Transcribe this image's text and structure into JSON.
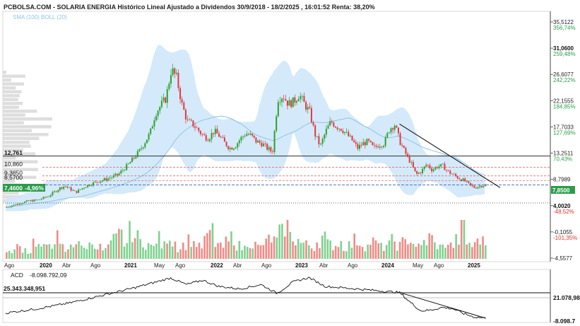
{
  "header": {
    "title": "PCBOLSA.COM - SOLARIA ENERGIA Histórico Lineal Ajustado a Dividendos 30/9/2018 - 18/2/2025 , 16:01:52 Renta: 38,20%",
    "indicators": "SMA (100) BOLL (20)"
  },
  "colors": {
    "up": "#2ca02c",
    "down": "#e0393e",
    "bollinger_fill": "#cfe8fa",
    "sma": "#8fc3e9",
    "up_pct": "#2a9d4a",
    "down_pct": "#d9342b",
    "current_box": "#2a9d4a"
  },
  "chart_data": {
    "type": "candlestick",
    "x_labels": [
      "Ago",
      "2020",
      "Abr",
      "Ago",
      "2021",
      "May",
      "Ago",
      "2022",
      "Abr",
      "Ago",
      "2023",
      "Abr",
      "Ago",
      "2024",
      "May",
      "Ago",
      "2025"
    ],
    "x_label_bold": [
      false,
      true,
      false,
      false,
      true,
      false,
      false,
      true,
      false,
      false,
      true,
      false,
      false,
      true,
      false,
      false,
      true
    ],
    "price_axis": [
      {
        "value": "35,5122",
        "pct": "356,74%",
        "pct_sign": "up"
      },
      {
        "value": "31,0600",
        "pct": "259,48%",
        "pct_sign": "up",
        "bold": true
      },
      {
        "value": "26,6077",
        "pct": "242,22%",
        "pct_sign": "up"
      },
      {
        "value": "22,1555",
        "pct": "184,85%",
        "pct_sign": "up"
      },
      {
        "value": "17,7033",
        "pct": "127,69%",
        "pct_sign": "up"
      },
      {
        "value": "13,2511",
        "pct": "70,43%",
        "pct_sign": "up"
      },
      {
        "value": "8,7989",
        "pct": "",
        "pct_sign": "up"
      },
      {
        "value": "4,0020",
        "pct": "-48,52%",
        "pct_sign": "down",
        "bold": true
      },
      {
        "value": "-0,1055",
        "pct": "-101,35%",
        "pct_sign": "down"
      },
      {
        "value": "-4,5577",
        "pct": "",
        "pct_sign": "down"
      }
    ],
    "current_price": "7,8500",
    "horizontal_levels": [
      {
        "label": "12,761",
        "value": 12.761
      },
      {
        "label": "10,860",
        "value": 10.86
      },
      {
        "label": "9,3850",
        "value": 9.385
      },
      {
        "label": "8,5700",
        "value": 8.57
      }
    ],
    "support_level": 4.8,
    "last_price_box": {
      "price": "7,4600",
      "change": "-4,96%"
    },
    "price_range": [
      -4.5577,
      37.0
    ],
    "price_path": [
      [
        0,
        4.1
      ],
      [
        2,
        4.6
      ],
      [
        4,
        5.1
      ],
      [
        6,
        5.3
      ],
      [
        8,
        6.0
      ],
      [
        10,
        7.3
      ],
      [
        11,
        7.7
      ],
      [
        13,
        6.6
      ],
      [
        15,
        7.7
      ],
      [
        17,
        8.4
      ],
      [
        19,
        8.9
      ],
      [
        21,
        9.6
      ],
      [
        23,
        11.4
      ],
      [
        25,
        13.6
      ],
      [
        27,
        16.6
      ],
      [
        28,
        20.0
      ],
      [
        30,
        22.6
      ],
      [
        31,
        27.5
      ],
      [
        32,
        26.0
      ],
      [
        33,
        21.5
      ],
      [
        34,
        18.6
      ],
      [
        35,
        18.2
      ],
      [
        36,
        17.2
      ],
      [
        37,
        16.2
      ],
      [
        38,
        15.8
      ],
      [
        39,
        17.0
      ],
      [
        40,
        16.2
      ],
      [
        41,
        15.0
      ],
      [
        42,
        14.1
      ],
      [
        43,
        14.5
      ],
      [
        44,
        15.7
      ],
      [
        45,
        16.6
      ],
      [
        46,
        16.2
      ],
      [
        47,
        15.2
      ],
      [
        48,
        14.9
      ],
      [
        49,
        14.1
      ],
      [
        50,
        13.4
      ],
      [
        51,
        22.5
      ],
      [
        52,
        23.0
      ],
      [
        53,
        21.6
      ],
      [
        54,
        22.0
      ],
      [
        55,
        23.2
      ],
      [
        56,
        21.6
      ],
      [
        57,
        20.2
      ],
      [
        58,
        16.4
      ],
      [
        59,
        14.4
      ],
      [
        60,
        16.9
      ],
      [
        61,
        18.6
      ],
      [
        62,
        17.8
      ],
      [
        63,
        17.4
      ],
      [
        64,
        16.4
      ],
      [
        65,
        15.4
      ],
      [
        66,
        14.1
      ],
      [
        67,
        14.9
      ],
      [
        68,
        15.2
      ],
      [
        69,
        14.1
      ],
      [
        70,
        14.7
      ],
      [
        71,
        14.9
      ],
      [
        72,
        17.4
      ],
      [
        73,
        18.1
      ],
      [
        74,
        15.1
      ],
      [
        75,
        13.2
      ],
      [
        76,
        11.6
      ],
      [
        77,
        9.6
      ],
      [
        78,
        10.2
      ],
      [
        79,
        11.4
      ],
      [
        80,
        10.4
      ],
      [
        81,
        11.0
      ],
      [
        82,
        11.1
      ],
      [
        83,
        10.1
      ],
      [
        84,
        9.6
      ],
      [
        85,
        9.0
      ],
      [
        86,
        8.6
      ],
      [
        87,
        7.9
      ],
      [
        88,
        7.4
      ],
      [
        89,
        7.7
      ],
      [
        90,
        7.85
      ]
    ],
    "volume_relative": [
      0.15,
      0.22,
      0.3,
      0.25,
      0.18,
      0.45,
      0.32,
      0.28,
      0.4,
      0.55,
      0.3,
      0.2,
      0.38,
      0.48,
      0.26,
      0.35,
      0.42,
      0.3,
      0.22,
      0.35,
      0.5,
      0.62,
      0.4,
      0.7,
      0.55,
      0.45,
      0.38,
      0.3,
      0.52,
      0.34,
      0.6,
      0.44,
      0.28,
      0.36,
      0.48,
      0.4,
      0.3,
      0.5,
      0.72,
      0.38,
      0.3,
      0.42,
      0.55,
      0.34,
      0.28,
      0.45,
      0.36,
      0.3,
      0.4,
      0.52,
      0.46,
      0.66,
      0.85,
      0.58,
      0.48,
      0.4,
      0.36,
      0.3,
      0.45,
      0.56,
      0.38,
      0.34,
      0.42,
      0.3,
      0.36,
      0.48,
      0.4,
      0.32,
      0.44,
      0.38,
      0.3,
      0.36,
      0.46,
      0.34,
      0.42,
      0.52,
      0.38,
      0.3,
      0.44,
      0.54,
      0.36,
      0.3,
      0.4,
      0.34,
      0.48,
      0.9,
      0.4,
      0.34,
      0.52,
      0.44
    ],
    "acd": {
      "label": "ACD",
      "value": "-8.098.792,09",
      "level_label": "25.343.348,951",
      "axis_top": "21.078,98",
      "axis_bottom": "-8.098.7",
      "path": [
        [
          0,
          0.15
        ],
        [
          6,
          0.25
        ],
        [
          12,
          0.38
        ],
        [
          18,
          0.55
        ],
        [
          24,
          0.72
        ],
        [
          28,
          0.85
        ],
        [
          31,
          0.95
        ],
        [
          34,
          0.8
        ],
        [
          37,
          0.9
        ],
        [
          40,
          0.76
        ],
        [
          44,
          0.7
        ],
        [
          48,
          0.8
        ],
        [
          51,
          0.6
        ],
        [
          54,
          0.86
        ],
        [
          57,
          0.96
        ],
        [
          60,
          0.76
        ],
        [
          64,
          0.72
        ],
        [
          68,
          0.68
        ],
        [
          72,
          0.64
        ],
        [
          74,
          0.62
        ],
        [
          76,
          0.4
        ],
        [
          78,
          0.2
        ],
        [
          80,
          0.22
        ],
        [
          82,
          0.28
        ],
        [
          84,
          0.25
        ],
        [
          86,
          0.14
        ],
        [
          88,
          0.06
        ],
        [
          90,
          0.04
        ]
      ]
    }
  }
}
